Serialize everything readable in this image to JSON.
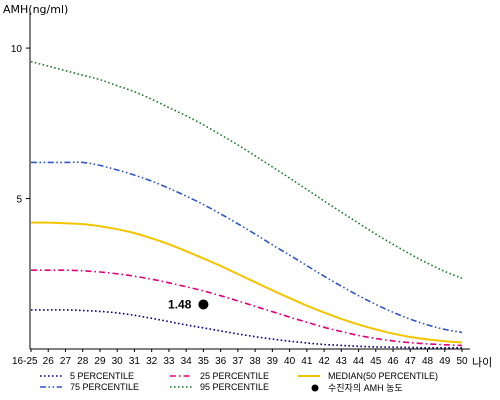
{
  "chart_data": {
    "type": "line",
    "ylabel": "AMH(ng/ml)",
    "xlabel": "나이",
    "ylim": [
      0,
      11
    ],
    "yticks": [
      5,
      10
    ],
    "categories": [
      "16-25",
      "26",
      "27",
      "28",
      "29",
      "30",
      "31",
      "32",
      "33",
      "34",
      "35",
      "36",
      "37",
      "38",
      "39",
      "40",
      "41",
      "42",
      "43",
      "44",
      "45",
      "46",
      "47",
      "48",
      "49",
      "50"
    ],
    "series": [
      {
        "name": "5 PERCENTILE",
        "color": "#00008b",
        "dash": "dot",
        "values": [
          1.3,
          1.3,
          1.3,
          1.28,
          1.25,
          1.2,
          1.12,
          1.02,
          0.91,
          0.8,
          0.7,
          0.6,
          0.5,
          0.41,
          0.33,
          0.26,
          0.2,
          0.15,
          0.12,
          0.09,
          0.07,
          0.06,
          0.05,
          0.04,
          0.04,
          0.04
        ]
      },
      {
        "name": "25 PERCENTILE",
        "color": "#e0007a",
        "dash": "dashdot",
        "values": [
          2.62,
          2.62,
          2.62,
          2.6,
          2.56,
          2.5,
          2.42,
          2.32,
          2.2,
          2.07,
          1.93,
          1.77,
          1.6,
          1.42,
          1.24,
          1.06,
          0.89,
          0.72,
          0.58,
          0.45,
          0.35,
          0.27,
          0.21,
          0.17,
          0.14,
          0.12
        ]
      },
      {
        "name": "MEDIAN(50 PERCENTILE)",
        "color": "#f5c400",
        "dash": "solid",
        "values": [
          4.2,
          4.2,
          4.18,
          4.15,
          4.08,
          3.98,
          3.85,
          3.68,
          3.48,
          3.25,
          3.01,
          2.76,
          2.49,
          2.22,
          1.95,
          1.69,
          1.44,
          1.21,
          1.0,
          0.81,
          0.65,
          0.51,
          0.4,
          0.32,
          0.26,
          0.22
        ]
      },
      {
        "name": "75 PERCENTILE",
        "color": "#2f55c8",
        "dash": "dashdotdot",
        "values": [
          6.2,
          6.2,
          6.2,
          6.2,
          6.1,
          5.95,
          5.78,
          5.58,
          5.34,
          5.08,
          4.8,
          4.49,
          4.16,
          3.82,
          3.46,
          3.12,
          2.77,
          2.42,
          2.09,
          1.77,
          1.48,
          1.22,
          0.99,
          0.8,
          0.65,
          0.55
        ]
      },
      {
        "name": "95 PERCENTILE",
        "color": "#1e7b2e",
        "dash": "dot",
        "values": [
          9.55,
          9.4,
          9.25,
          9.1,
          8.95,
          8.75,
          8.55,
          8.3,
          8.02,
          7.75,
          7.45,
          7.12,
          6.78,
          6.42,
          6.05,
          5.68,
          5.3,
          4.92,
          4.55,
          4.18,
          3.82,
          3.48,
          3.15,
          2.85,
          2.58,
          2.35
        ]
      }
    ],
    "points": [
      {
        "name": "수진자의 AMH 농도",
        "x": "35",
        "y": 1.48,
        "label": "1.48",
        "color": "#000000"
      }
    ],
    "legend_placement": "bottom",
    "grid": false
  }
}
